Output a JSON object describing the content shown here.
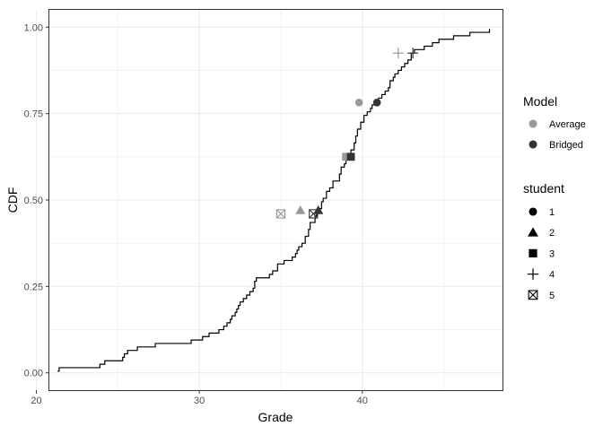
{
  "chart_data": {
    "type": "line",
    "xlabel": "Grade",
    "ylabel": "CDF",
    "xlim": [
      20.8,
      48.6
    ],
    "ylim": [
      -0.05,
      1.05
    ],
    "x_ticks": [
      20,
      30,
      40
    ],
    "y_ticks": [
      0.0,
      0.25,
      0.5,
      0.75,
      1.0
    ],
    "x_tick_labels": [
      "20",
      "30",
      "40"
    ],
    "y_tick_labels": [
      "0.00",
      "0.25",
      "0.50",
      "0.75",
      "1.00"
    ],
    "grid": true,
    "theme": "bw",
    "cdf": {
      "name": "",
      "color": "#000000",
      "points": [
        [
          21.3,
          0.005
        ],
        [
          21.4,
          0.015
        ],
        [
          23.9,
          0.025
        ],
        [
          24.2,
          0.035
        ],
        [
          25.3,
          0.045
        ],
        [
          25.4,
          0.055
        ],
        [
          25.6,
          0.065
        ],
        [
          26.2,
          0.075
        ],
        [
          27.3,
          0.085
        ],
        [
          29.5,
          0.095
        ],
        [
          30.2,
          0.105
        ],
        [
          30.6,
          0.115
        ],
        [
          31.2,
          0.125
        ],
        [
          31.5,
          0.135
        ],
        [
          31.7,
          0.145
        ],
        [
          31.9,
          0.155
        ],
        [
          32.0,
          0.165
        ],
        [
          32.2,
          0.175
        ],
        [
          32.3,
          0.185
        ],
        [
          32.4,
          0.195
        ],
        [
          32.5,
          0.205
        ],
        [
          32.7,
          0.215
        ],
        [
          32.9,
          0.225
        ],
        [
          33.1,
          0.235
        ],
        [
          33.3,
          0.245
        ],
        [
          33.4,
          0.265
        ],
        [
          33.5,
          0.275
        ],
        [
          34.3,
          0.285
        ],
        [
          34.5,
          0.295
        ],
        [
          34.8,
          0.315
        ],
        [
          35.2,
          0.325
        ],
        [
          35.7,
          0.335
        ],
        [
          35.9,
          0.345
        ],
        [
          36.0,
          0.355
        ],
        [
          36.1,
          0.365
        ],
        [
          36.3,
          0.375
        ],
        [
          36.5,
          0.395
        ],
        [
          36.7,
          0.415
        ],
        [
          36.8,
          0.435
        ],
        [
          37.1,
          0.455
        ],
        [
          37.2,
          0.465
        ],
        [
          37.3,
          0.475
        ],
        [
          37.5,
          0.495
        ],
        [
          37.6,
          0.505
        ],
        [
          37.8,
          0.525
        ],
        [
          38.0,
          0.535
        ],
        [
          38.2,
          0.555
        ],
        [
          38.6,
          0.575
        ],
        [
          38.7,
          0.595
        ],
        [
          38.9,
          0.605
        ],
        [
          39.0,
          0.625
        ],
        [
          39.3,
          0.645
        ],
        [
          39.5,
          0.665
        ],
        [
          39.6,
          0.685
        ],
        [
          39.7,
          0.705
        ],
        [
          39.9,
          0.725
        ],
        [
          40.1,
          0.745
        ],
        [
          40.3,
          0.755
        ],
        [
          40.5,
          0.765
        ],
        [
          40.6,
          0.775
        ],
        [
          40.8,
          0.785
        ],
        [
          41.0,
          0.795
        ],
        [
          41.2,
          0.805
        ],
        [
          41.4,
          0.815
        ],
        [
          41.6,
          0.825
        ],
        [
          41.7,
          0.845
        ],
        [
          41.9,
          0.855
        ],
        [
          42.0,
          0.865
        ],
        [
          42.2,
          0.875
        ],
        [
          42.4,
          0.885
        ],
        [
          42.6,
          0.895
        ],
        [
          42.8,
          0.905
        ],
        [
          43.0,
          0.925
        ],
        [
          43.2,
          0.935
        ],
        [
          43.8,
          0.945
        ],
        [
          44.3,
          0.955
        ],
        [
          44.7,
          0.965
        ],
        [
          45.6,
          0.975
        ],
        [
          46.6,
          0.985
        ],
        [
          47.8,
          0.995
        ]
      ]
    },
    "markers": [
      {
        "model": "Average",
        "student": "1",
        "x": 39.8,
        "y": 0.782
      },
      {
        "model": "Bridged",
        "student": "1",
        "x": 40.9,
        "y": 0.782
      },
      {
        "model": "Average",
        "student": "2",
        "x": 36.2,
        "y": 0.47
      },
      {
        "model": "Bridged",
        "student": "2",
        "x": 37.3,
        "y": 0.47
      },
      {
        "model": "Average",
        "student": "3",
        "x": 39.0,
        "y": 0.625
      },
      {
        "model": "Bridged",
        "student": "3",
        "x": 39.3,
        "y": 0.625
      },
      {
        "model": "Average",
        "student": "4",
        "x": 42.2,
        "y": 0.925
      },
      {
        "model": "Bridged",
        "student": "4",
        "x": 43.1,
        "y": 0.925
      },
      {
        "model": "Average",
        "student": "5",
        "x": 35.0,
        "y": 0.46
      },
      {
        "model": "Bridged",
        "student": "5",
        "x": 37.0,
        "y": 0.46
      }
    ],
    "legends": [
      {
        "title": "Model",
        "placement": "right",
        "items": [
          {
            "label": "Average",
            "color": "#999999",
            "shape": "circle"
          },
          {
            "label": "Bridged",
            "color": "#333333",
            "shape": "circle"
          }
        ]
      },
      {
        "title": "student",
        "placement": "right",
        "items": [
          {
            "label": "1",
            "color": "#000000",
            "shape": "circle"
          },
          {
            "label": "2",
            "color": "#000000",
            "shape": "triangle"
          },
          {
            "label": "3",
            "color": "#000000",
            "shape": "square"
          },
          {
            "label": "4",
            "color": "#000000",
            "shape": "plus"
          },
          {
            "label": "5",
            "color": "#000000",
            "shape": "boxx"
          }
        ]
      }
    ],
    "colors": {
      "Average": "#999999",
      "Bridged": "#333333",
      "grid": "#ebebeb",
      "panel_border": "#333333",
      "tick_text": "#4d4d4d",
      "axis_title": "#000000"
    }
  }
}
